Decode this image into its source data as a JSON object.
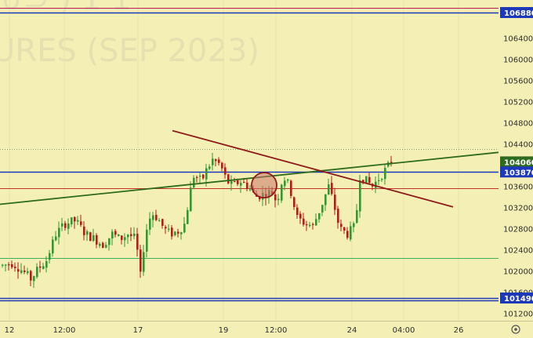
{
  "chart_data": {
    "type": "candlestick",
    "watermark": "URES (SEP 2023)",
    "x_ticks": [
      "12",
      "12:00",
      "17",
      "19",
      "12:00",
      "24",
      "04:00",
      "26"
    ],
    "y_ticks": [
      101200,
      101600,
      102000,
      102400,
      102800,
      103200,
      103600,
      104000,
      104400,
      104800,
      105200,
      105600,
      106000,
      106400
    ],
    "price_labels": [
      {
        "value": 106880,
        "text": "106880",
        "bg": "#1d38b8"
      },
      {
        "value": 104060,
        "text": "104060",
        "bg": "#2e6b1e"
      },
      {
        "value": 103870,
        "text": "103870",
        "bg": "#1d38b8"
      },
      {
        "value": 101490,
        "text": "101490",
        "bg": "#1d38b8"
      }
    ],
    "horizontal_lines": [
      {
        "value": 106880,
        "color": "#1d38b8"
      },
      {
        "value": 106970,
        "color": "#b2205a"
      },
      {
        "value": 104300,
        "color": "#7fa27f",
        "style": "dotted"
      },
      {
        "value": 103870,
        "color": "#1d38b8"
      },
      {
        "value": 103560,
        "color": "#c0312a"
      },
      {
        "value": 102250,
        "color": "#3fae5a"
      },
      {
        "value": 101490,
        "color": "#1d38b8"
      },
      {
        "value": 101440,
        "color": "#1d38b8"
      }
    ],
    "trend_lines": [
      {
        "name": "green-support",
        "color": "#2e6b1e",
        "points": [
          [
            0,
            103260
          ],
          [
            636,
            104240
          ]
        ]
      },
      {
        "name": "red-resistance",
        "color": "#8e1b1b",
        "points": [
          [
            220,
            104650
          ],
          [
            578,
            103210
          ]
        ]
      }
    ],
    "highlight_circle": {
      "x": 337,
      "y": 103620
    },
    "ylim": [
      100900,
      107150
    ],
    "last_price": 104060,
    "candle_colors": {
      "up": "#2f9a33",
      "down": "#b81a1a"
    }
  },
  "ui": {
    "settings_icon": "gear-icon"
  }
}
